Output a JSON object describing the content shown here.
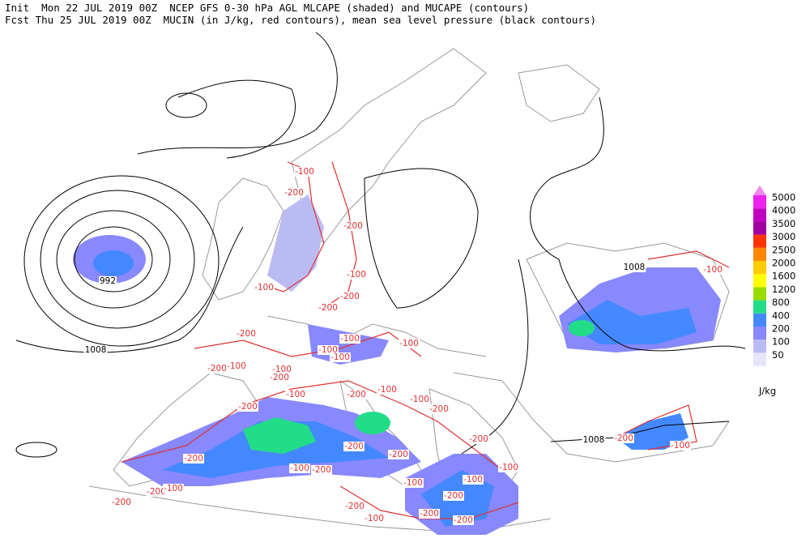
{
  "header": {
    "line1": "Init  Mon 22 JUL 2019 00Z  NCEP GFS 0-30 hPa AGL MLCAPE (shaded) and MUCAPE (contours)",
    "line2": "Fcst Thu 25 JUL 2019 00Z  MUCIN (in J/kg, red contours), mean sea level pressure (black contours)"
  },
  "legend": {
    "unit": "J/kg",
    "levels": [
      {
        "label": "5000",
        "color": "#ee22ee"
      },
      {
        "label": "4000",
        "color": "#c000c0"
      },
      {
        "label": "3500",
        "color": "#a000a0"
      },
      {
        "label": "3000",
        "color": "#ff3300"
      },
      {
        "label": "2500",
        "color": "#ff8800"
      },
      {
        "label": "2000",
        "color": "#ffcc00"
      },
      {
        "label": "1600",
        "color": "#ffff00"
      },
      {
        "label": "1200",
        "color": "#99dd00"
      },
      {
        "label": "800",
        "color": "#22dd88"
      },
      {
        "label": "400",
        "color": "#4488ff"
      },
      {
        "label": "200",
        "color": "#8888ff"
      },
      {
        "label": "100",
        "color": "#bbbbf4"
      },
      {
        "label": "50",
        "color": "#e4e4fa"
      }
    ]
  },
  "map": {
    "pressure_labels": [
      "992",
      "1008",
      "1008",
      "1008"
    ],
    "cin_labels": [
      "-100",
      "-200",
      "-200",
      "-100",
      "-100",
      "-200",
      "-200",
      "-200",
      "-100",
      "-100",
      "-100",
      "-100",
      "-100",
      "-200",
      "-100",
      "-200",
      "-100",
      "-200",
      "-100",
      "-100",
      "-200",
      "-200",
      "-200",
      "-200",
      "-200",
      "-200",
      "-100",
      "-200",
      "-100",
      "-100",
      "-100",
      "-200",
      "-200",
      "-100",
      "-200",
      "-200",
      "-100",
      "-200",
      "-200",
      "-100",
      "-200",
      "-100"
    ]
  }
}
